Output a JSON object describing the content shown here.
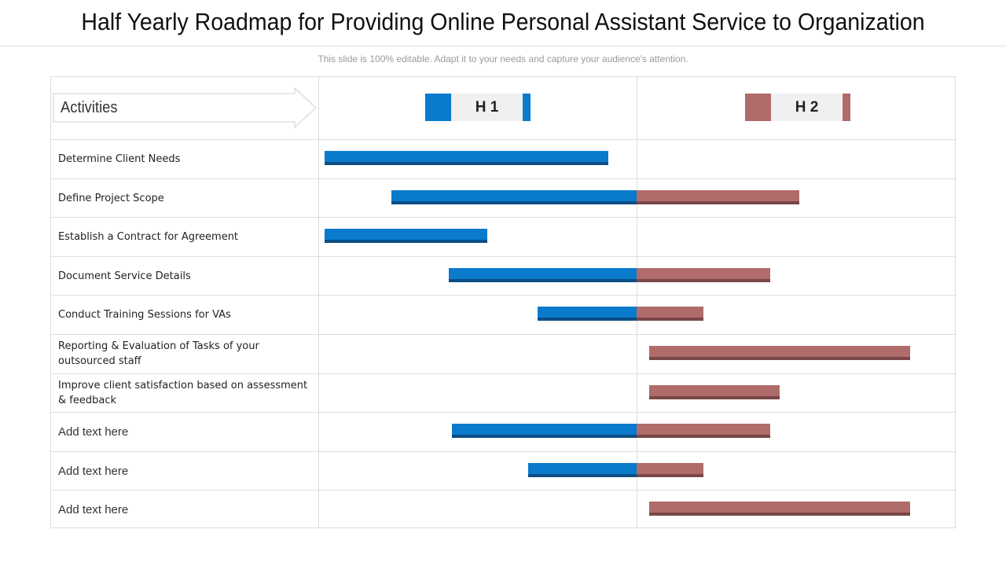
{
  "title": "Half Yearly Roadmap for Providing Online Personal Assistant Service to Organization",
  "subtitle": "This slide is 100% editable. Adapt it to your needs and capture your audience's attention.",
  "header": {
    "activities": "Activities"
  },
  "phases": [
    {
      "label": "H 1",
      "color": "#0a7acc"
    },
    {
      "label": "H 2",
      "color": "#b06b6b"
    }
  ],
  "colors": {
    "h1": "#0a7acc",
    "h1_dark": "#0a4e85",
    "h2": "#b06b6b",
    "h2_dark": "#7a4646"
  },
  "activities": [
    {
      "label": "Determine  Client Needs",
      "plain": false,
      "start": 0.02,
      "end": 0.91
    },
    {
      "label": "Define Project Scope",
      "plain": false,
      "start": 0.23,
      "end": 1.51
    },
    {
      "label": "Establish a Contract for Agreement",
      "plain": false,
      "start": 0.02,
      "end": 0.53
    },
    {
      "label": "Document  Service Details",
      "plain": false,
      "start": 0.41,
      "end": 1.42
    },
    {
      "label": "Conduct  Training Sessions for VAs",
      "plain": false,
      "start": 0.69,
      "end": 1.21
    },
    {
      "label": "Reporting  & Evaluation of Tasks of your outsourced staff",
      "plain": false,
      "start": 1.04,
      "end": 1.86
    },
    {
      "label": "Improve  client satisfaction based on assessment & feedback",
      "plain": false,
      "start": 1.04,
      "end": 1.45
    },
    {
      "label": "Add text here",
      "plain": true,
      "start": 0.42,
      "end": 1.42
    },
    {
      "label": "Add text here",
      "plain": true,
      "start": 0.66,
      "end": 1.21
    },
    {
      "label": "Add text here",
      "plain": true,
      "start": 1.04,
      "end": 1.86
    }
  ]
}
